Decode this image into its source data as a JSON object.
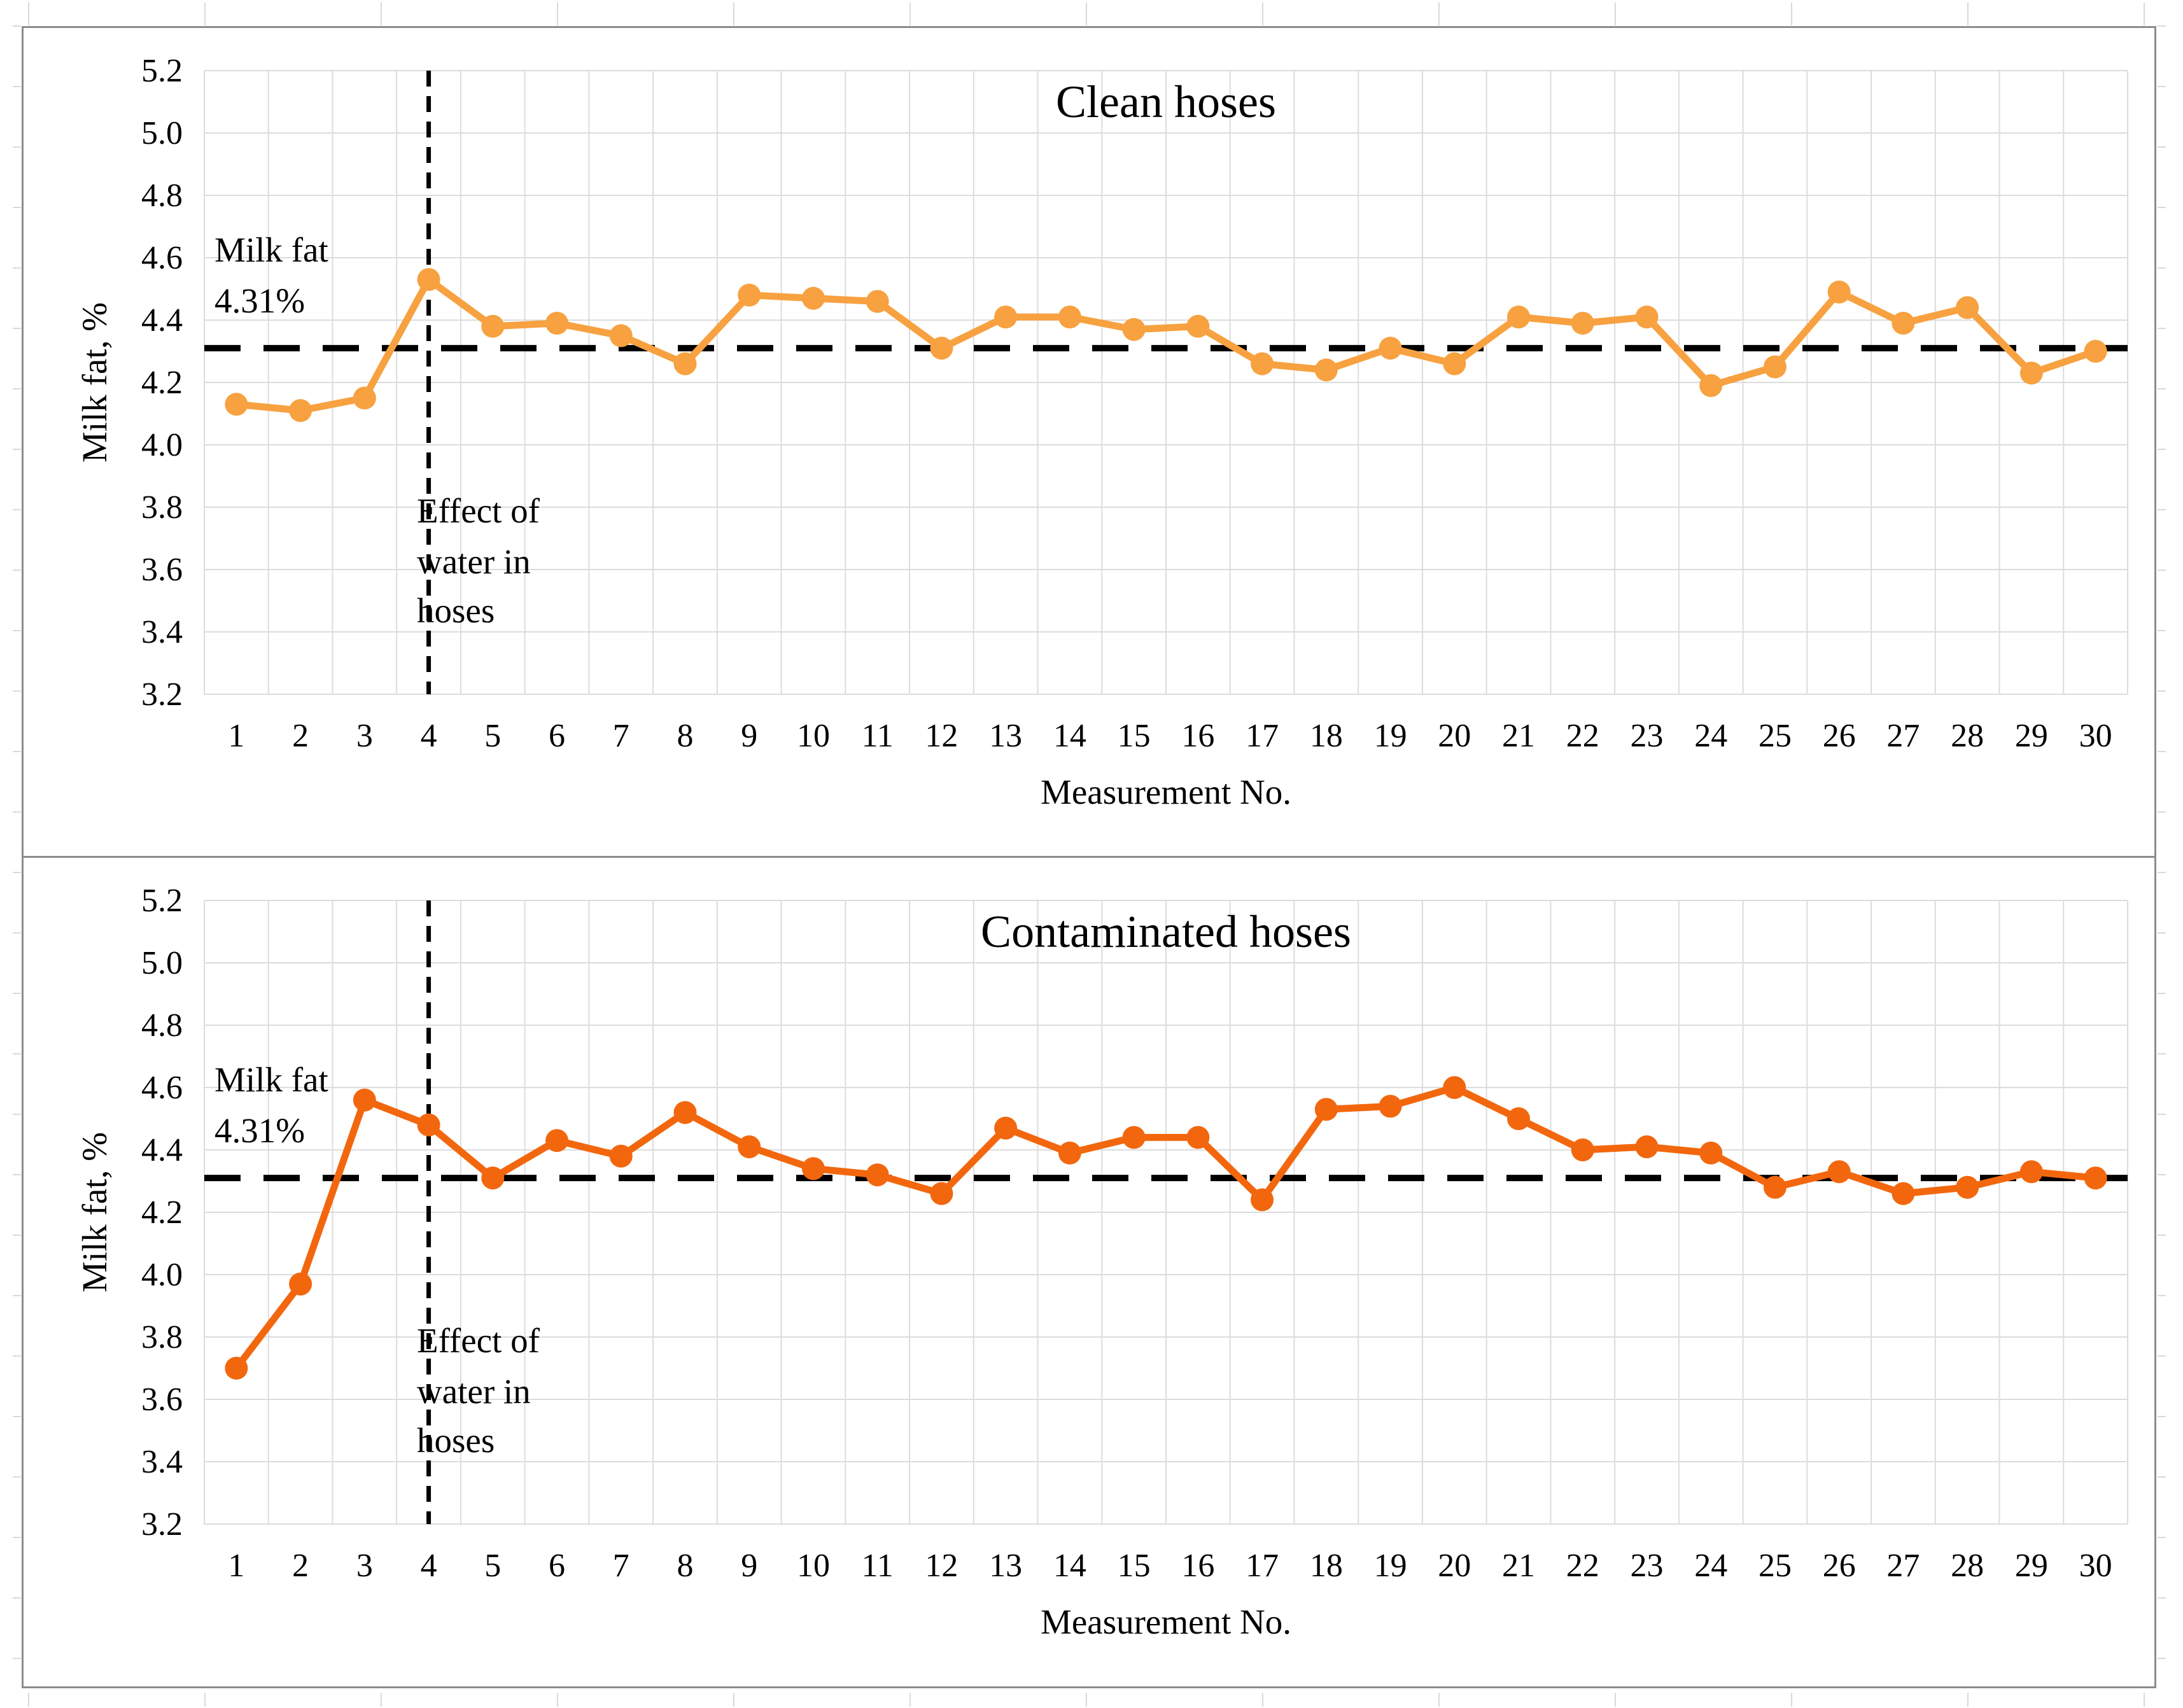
{
  "page": {
    "background": "#ffffff",
    "frame_border_color": "#8c8c8c",
    "sheet_gridline_color": "#d9d9d9",
    "plot_gridline_color": "#dcdcdc",
    "text_color": "#000000"
  },
  "chart_data": [
    {
      "type": "line",
      "title": "Clean hoses",
      "xlabel": "Measurement No.",
      "ylabel": "Milk fat, %",
      "categories": [
        1,
        2,
        3,
        4,
        5,
        6,
        7,
        8,
        9,
        10,
        11,
        12,
        13,
        14,
        15,
        16,
        17,
        18,
        19,
        20,
        21,
        22,
        23,
        24,
        25,
        26,
        27,
        28,
        29,
        30
      ],
      "series": [
        {
          "color": "#f7a140",
          "values": [
            4.13,
            4.11,
            4.15,
            4.53,
            4.38,
            4.39,
            4.35,
            4.26,
            4.48,
            4.47,
            4.46,
            4.31,
            4.41,
            4.41,
            4.37,
            4.38,
            4.26,
            4.24,
            4.31,
            4.26,
            4.41,
            4.39,
            4.41,
            4.19,
            4.25,
            4.49,
            4.39,
            4.44,
            4.23,
            4.3
          ]
        }
      ],
      "ylim": [
        3.2,
        5.2
      ],
      "ytick_step": 0.2,
      "ytick_labels": [
        "5.2",
        "5.0",
        "4.8",
        "4.6",
        "4.4",
        "4.2",
        "4.0",
        "3.8",
        "3.6",
        "3.4",
        "3.2"
      ],
      "grid": true,
      "legend": "none",
      "reference_line": {
        "value": 4.31,
        "style": "dashed",
        "color": "#000000",
        "label_lines": [
          "Milk fat",
          "4.31%"
        ]
      },
      "event_line": {
        "x": 3.5,
        "style": "dashed",
        "color": "#000000",
        "label_lines": [
          "Effect of",
          "water in",
          "hoses"
        ]
      }
    },
    {
      "type": "line",
      "title": "Contaminated hoses",
      "xlabel": "Measurement No.",
      "ylabel": "Milk fat, %",
      "categories": [
        1,
        2,
        3,
        4,
        5,
        6,
        7,
        8,
        9,
        10,
        11,
        12,
        13,
        14,
        15,
        16,
        17,
        18,
        19,
        20,
        21,
        22,
        23,
        24,
        25,
        26,
        27,
        28,
        29,
        30
      ],
      "series": [
        {
          "color": "#f2670e",
          "values": [
            3.7,
            3.97,
            4.56,
            4.48,
            4.31,
            4.43,
            4.38,
            4.52,
            4.41,
            4.34,
            4.32,
            4.26,
            4.47,
            4.39,
            4.44,
            4.44,
            4.24,
            4.53,
            4.54,
            4.6,
            4.5,
            4.4,
            4.41,
            4.39,
            4.28,
            4.33,
            4.26,
            4.28,
            4.33,
            4.31
          ]
        }
      ],
      "ylim": [
        3.2,
        5.2
      ],
      "ytick_step": 0.2,
      "ytick_labels": [
        "5.2",
        "5.0",
        "4.8",
        "4.6",
        "4.4",
        "4.2",
        "4.0",
        "3.8",
        "3.6",
        "3.4",
        "3.2"
      ],
      "grid": true,
      "legend": "none",
      "reference_line": {
        "value": 4.31,
        "style": "dashed",
        "color": "#000000",
        "label_lines": [
          "Milk fat",
          "4.31%"
        ]
      },
      "event_line": {
        "x": 3.5,
        "style": "dashed",
        "color": "#000000",
        "label_lines": [
          "Effect of",
          "water in",
          "hoses"
        ]
      }
    }
  ]
}
